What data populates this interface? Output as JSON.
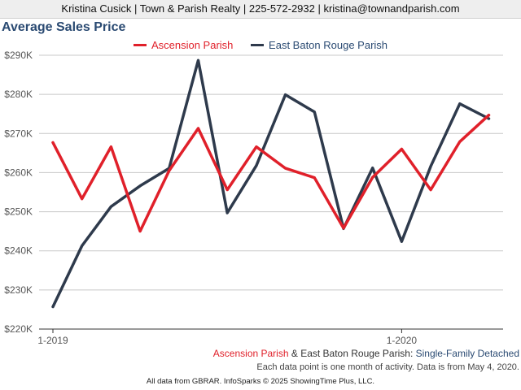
{
  "header": {
    "text": "Kristina Cusick | Town & Parish Realty | 225-572-2932 | kristina@townandparish.com"
  },
  "colors": {
    "ascension": "#e0202a",
    "ebr": "#2e3a4c",
    "title": "#2a4a72",
    "grid": "#c8c8c8"
  },
  "chart_data": {
    "type": "line",
    "title": "Average Sales Price",
    "x_tick_labels": [
      "1-2019",
      "1-2020"
    ],
    "x": [
      "2019-01",
      "2019-02",
      "2019-03",
      "2019-04",
      "2019-05",
      "2019-06",
      "2019-07",
      "2019-08",
      "2019-09",
      "2019-10",
      "2019-11",
      "2019-12",
      "2020-01",
      "2020-02",
      "2020-03",
      "2020-04"
    ],
    "series": [
      {
        "name": "Ascension Parish",
        "color": "#e0202a",
        "values": [
          267700,
          253300,
          266600,
          245000,
          260500,
          271300,
          255600,
          266600,
          261100,
          258700,
          245800,
          258800,
          266000,
          255600,
          267900,
          274700
        ]
      },
      {
        "name": "East Baton Rouge Parish",
        "color": "#2e3a4c",
        "values": [
          225700,
          241300,
          251300,
          256600,
          261100,
          288700,
          249700,
          261800,
          279900,
          275500,
          245700,
          261200,
          242400,
          261600,
          277600,
          273800
        ]
      }
    ],
    "ylim": [
      220000,
      290000
    ],
    "y_ticks": [
      220000,
      230000,
      240000,
      250000,
      260000,
      270000,
      280000,
      290000
    ],
    "y_tick_labels": [
      "$220K",
      "$230K",
      "$240K",
      "$250K",
      "$260K",
      "$270K",
      "$280K",
      "$290K"
    ],
    "grid": true,
    "legend": "top-center",
    "subtitle": {
      "a": "Ascension Parish",
      "amp": " & ",
      "b": "East Baton Rouge Parish",
      "colon": ": ",
      "c": "Single-Family Detached"
    },
    "note": "Each data point is one month of activity. Data is from May 4, 2020."
  },
  "footer": {
    "text": "All data from GBRAR. InfoSparks © 2025 ShowingTime Plus, LLC."
  }
}
